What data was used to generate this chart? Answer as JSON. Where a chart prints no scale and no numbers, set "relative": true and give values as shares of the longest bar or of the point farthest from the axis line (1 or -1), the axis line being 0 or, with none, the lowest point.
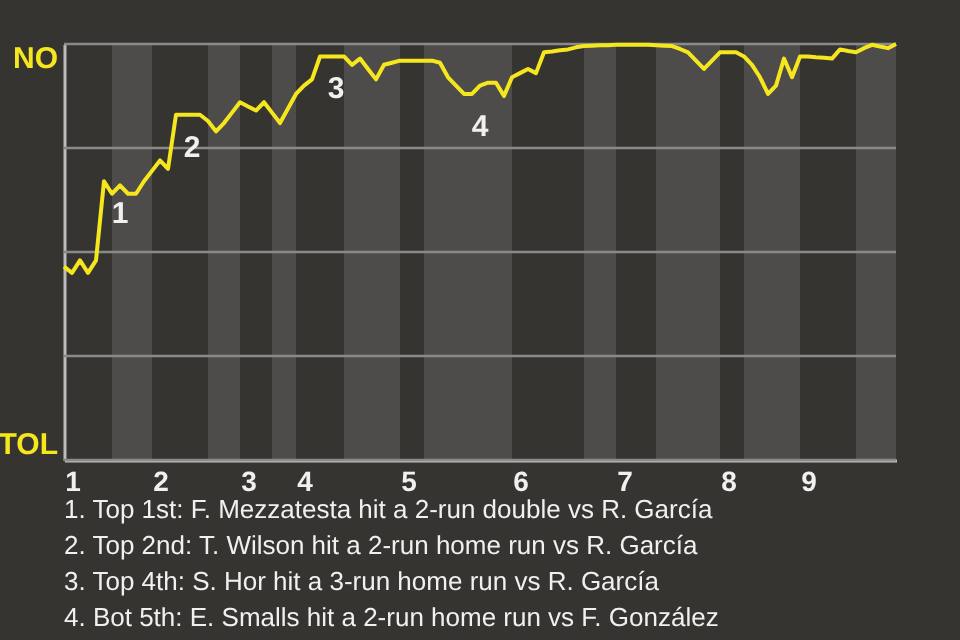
{
  "chart_data": {
    "type": "line",
    "relative": true,
    "categories": [
      null,
      "1",
      null,
      null,
      null,
      null,
      null,
      null,
      null,
      null,
      null,
      null,
      "2",
      null,
      null,
      null,
      null,
      null,
      null,
      null,
      null,
      null,
      null,
      "3",
      null,
      null,
      null,
      null,
      null,
      null,
      "4",
      null,
      null,
      null,
      null,
      null,
      null,
      null,
      null,
      null,
      null,
      null,
      null,
      "5",
      null,
      null,
      null,
      null,
      null,
      null,
      null,
      null,
      null,
      null,
      null,
      null,
      null,
      "6",
      null,
      null,
      null,
      null,
      null,
      null,
      null,
      null,
      null,
      null,
      null,
      null,
      "7",
      null,
      null,
      null,
      null,
      null,
      null,
      null,
      null,
      null,
      null,
      null,
      null,
      "8",
      null,
      null,
      null,
      null,
      null,
      null,
      null,
      null,
      null,
      "9",
      null,
      null,
      null,
      null,
      null,
      null,
      null,
      null,
      null,
      null,
      null
    ],
    "series": [
      {
        "color": "#f5e61e",
        "values": [
          0.465,
          0.45,
          0.48,
          0.45,
          0.48,
          0.67,
          0.64,
          0.66,
          0.64,
          0.64,
          0.67,
          0.695,
          0.72,
          0.7,
          0.83,
          0.83,
          0.83,
          0.83,
          0.815,
          0.79,
          0.81,
          0.835,
          0.86,
          0.85,
          0.84,
          0.86,
          0.835,
          0.81,
          0.845,
          0.88,
          0.9,
          0.915,
          0.97,
          0.97,
          0.97,
          0.97,
          0.95,
          0.965,
          0.94,
          0.915,
          0.95,
          0.955,
          0.96,
          0.96,
          0.96,
          0.96,
          0.96,
          0.955,
          0.92,
          0.9,
          0.88,
          0.88,
          0.9,
          0.907,
          0.907,
          0.875,
          0.92,
          0.93,
          0.94,
          0.93,
          0.98,
          0.982,
          0.985,
          0.987,
          0.992,
          0.995,
          0.996,
          0.997,
          0.997,
          0.998,
          0.998,
          0.998,
          0.998,
          0.998,
          0.997,
          0.996,
          0.995,
          0.988,
          0.98,
          0.96,
          0.94,
          0.96,
          0.98,
          0.98,
          0.98,
          0.97,
          0.95,
          0.92,
          0.88,
          0.9,
          0.965,
          0.92,
          0.97,
          0.97,
          0.968,
          0.967,
          0.965,
          0.987,
          0.983,
          0.98,
          0.99,
          0.998,
          0.994,
          0.99,
          1
        ]
      }
    ],
    "grid": "y",
    "annotations": [
      "NO",
      "TOL",
      {
        "text": "1",
        "y": 0.67
      },
      {
        "text": "2",
        "y": 0.83
      },
      {
        "text": "3",
        "y": 0.97
      },
      {
        "text": "4",
        "y": 0.88
      },
      "1. Top 1st: F. Mezzatesta hit a 2-run double vs R. García",
      "2. Top 2nd: T. Wilson hit a 2-run home run vs R. García",
      "3. Top 4th: S. Hor hit a 3-run home run vs R. García",
      "4. Bot 5th: E. Smalls hit a 2-run home run vs F. González"
    ]
  }
}
